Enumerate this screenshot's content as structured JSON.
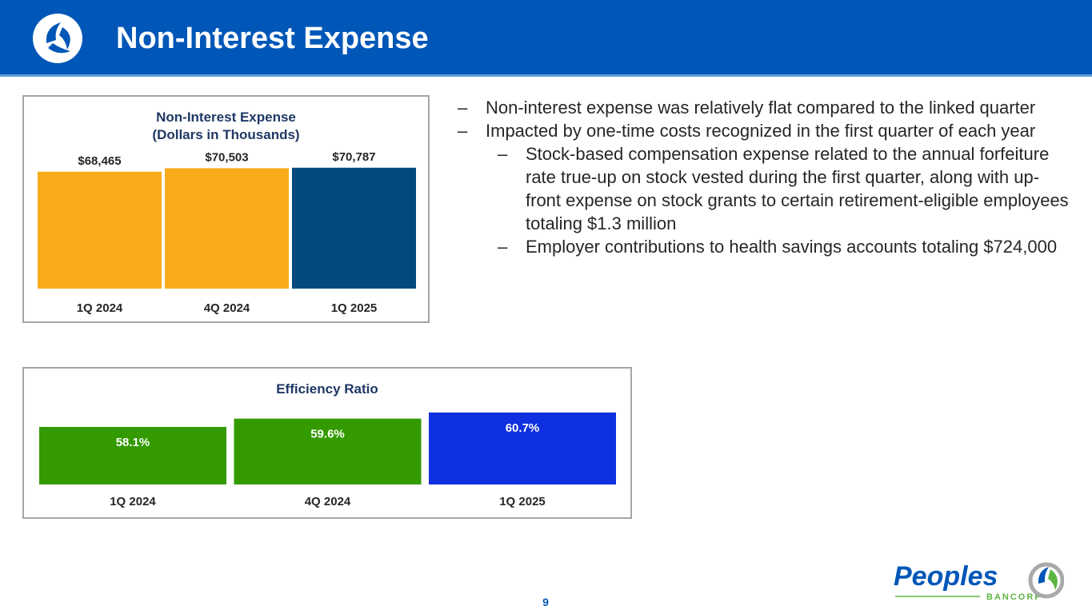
{
  "header": {
    "title": "Non-Interest Expense"
  },
  "colors": {
    "header": "#0057b8",
    "gold": "#f9ac1b",
    "navy": "#004a80",
    "green": "#339a00",
    "blue": "#0f30e0",
    "title_text": "#1f3864"
  },
  "bullets": [
    {
      "level": 1,
      "marker": "–",
      "text": "Non-interest expense was relatively flat compared to the linked quarter"
    },
    {
      "level": 1,
      "marker": "–",
      "text": "Impacted by one-time costs recognized in the first quarter of each year"
    },
    {
      "level": 2,
      "marker": "–",
      "text": "Stock-based compensation expense related to the annual forfeiture rate true-up on stock vested during the first quarter, along with up-front expense on stock grants to certain retirement-eligible employees totaling $1.3 million"
    },
    {
      "level": 2,
      "marker": "–",
      "text": "Employer contributions to health savings accounts totaling $724,000"
    }
  ],
  "chart_data": [
    {
      "type": "bar",
      "title": "Non-Interest Expense",
      "subtitle": "(Dollars in Thousands)",
      "categories": [
        "1Q 2024",
        "4Q 2024",
        "1Q 2025"
      ],
      "values": [
        68465,
        70503,
        70787
      ],
      "data_labels": [
        "$68,465",
        "$70,503",
        "$70,787"
      ],
      "bar_colors": [
        "#f9ac1b",
        "#f9ac1b",
        "#004a80"
      ],
      "ylim": [
        0,
        73500
      ],
      "grid": false,
      "legend": "none"
    },
    {
      "type": "bar",
      "title": "Efficiency Ratio",
      "categories": [
        "1Q 2024",
        "4Q 2024",
        "1Q 2025"
      ],
      "values": [
        58.1,
        59.6,
        60.7
      ],
      "data_labels": [
        "58.1%",
        "59.6%",
        "60.7%"
      ],
      "bar_colors": [
        "#339a00",
        "#339a00",
        "#0f30e0"
      ],
      "ylim": [
        47.7,
        62
      ],
      "grid": false,
      "legend": "none"
    }
  ],
  "footer": {
    "page_number": "9",
    "brand_name": "Peoples",
    "brand_sub": "BANCORP"
  }
}
